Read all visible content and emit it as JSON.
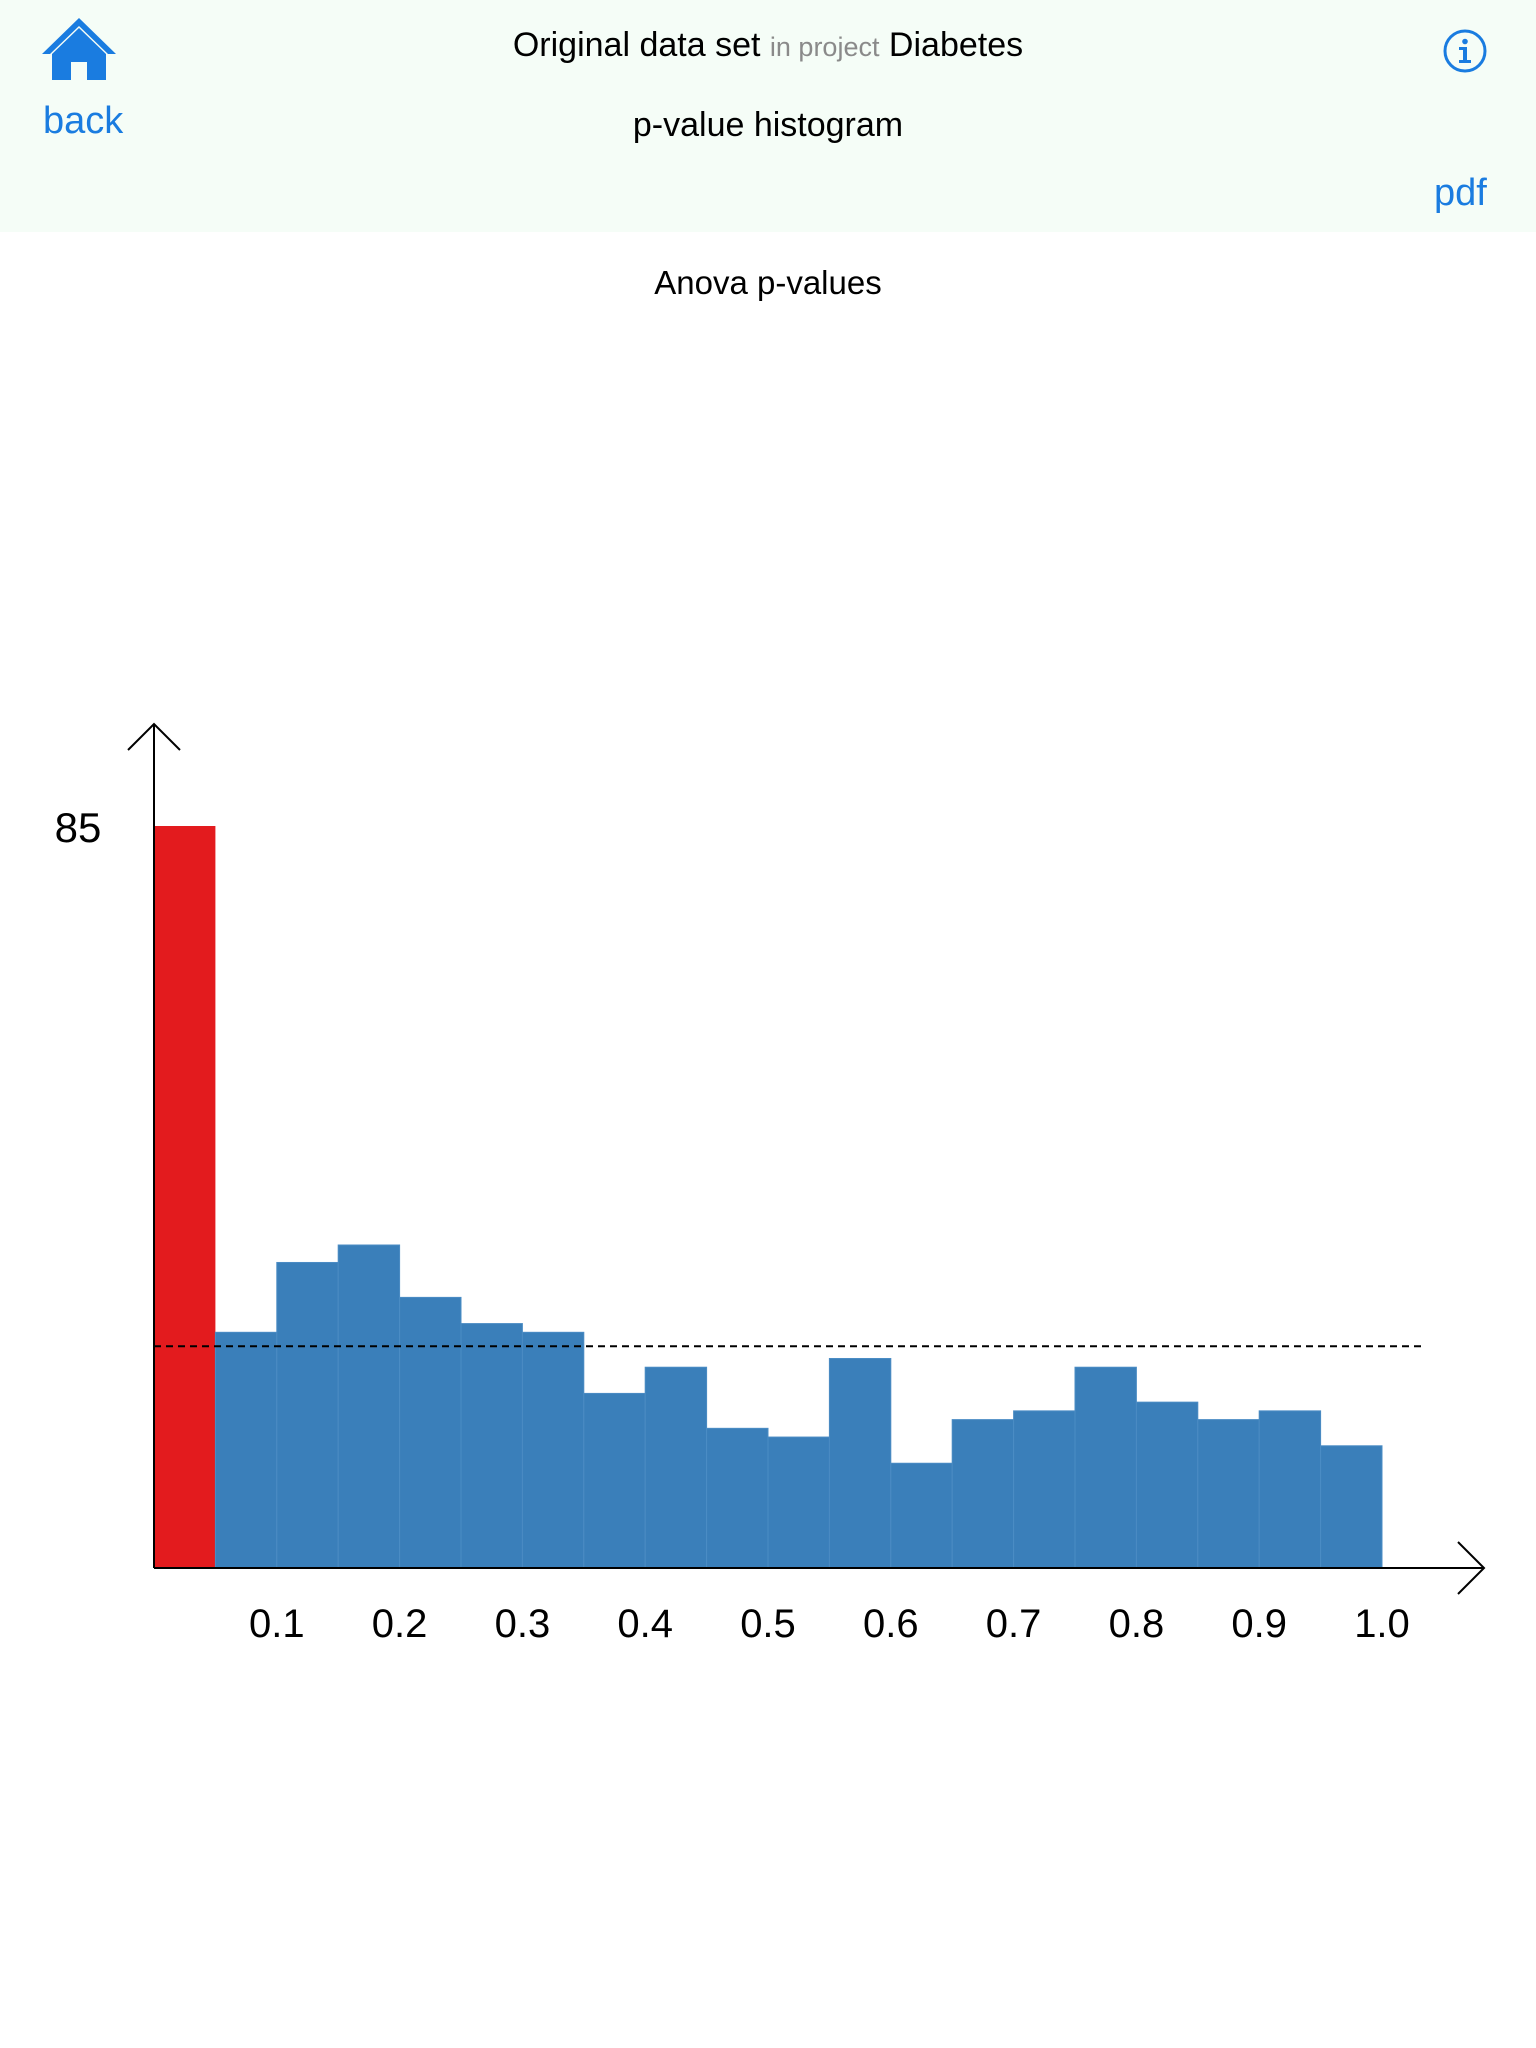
{
  "header": {
    "back_label": "back",
    "dataset_name": "Original data set",
    "in_project_label": "in project",
    "project_name": "Diabetes",
    "view_title": "p-value histogram",
    "pdf_label": "pdf",
    "accent_color": "#1a7ce0",
    "background_color": "#f5fdf7",
    "icons": [
      "home-icon",
      "info-icon"
    ]
  },
  "chart_data": {
    "type": "bar",
    "title": "Anova p-values",
    "xlabel": "",
    "ylabel": "",
    "bin_width": 0.05,
    "bin_starts": [
      0.0,
      0.05,
      0.1,
      0.15,
      0.2,
      0.25,
      0.3,
      0.35,
      0.4,
      0.45,
      0.5,
      0.55,
      0.6,
      0.65,
      0.7,
      0.75,
      0.8,
      0.85,
      0.9,
      0.95
    ],
    "values": [
      85,
      27,
      35,
      37,
      31,
      28,
      27,
      20,
      23,
      16,
      15,
      24,
      12,
      17,
      18,
      23,
      19,
      17,
      18,
      14
    ],
    "highlight_bins": [
      0
    ],
    "highlight_color": "#e31b1e",
    "bar_color": "#3a7fba",
    "reference_line": 25.4,
    "reference_line_style": "dashed",
    "y_tick_label": "85",
    "x_tick_labels": [
      "0.1",
      "0.2",
      "0.3",
      "0.4",
      "0.5",
      "0.6",
      "0.7",
      "0.8",
      "0.9",
      "1.0"
    ],
    "x_tick_values": [
      0.1,
      0.2,
      0.3,
      0.4,
      0.5,
      0.6,
      0.7,
      0.8,
      0.9,
      1.0
    ],
    "xlim": [
      0,
      1.0
    ],
    "ylim": [
      0,
      85
    ],
    "grid": false,
    "legend": "none"
  }
}
